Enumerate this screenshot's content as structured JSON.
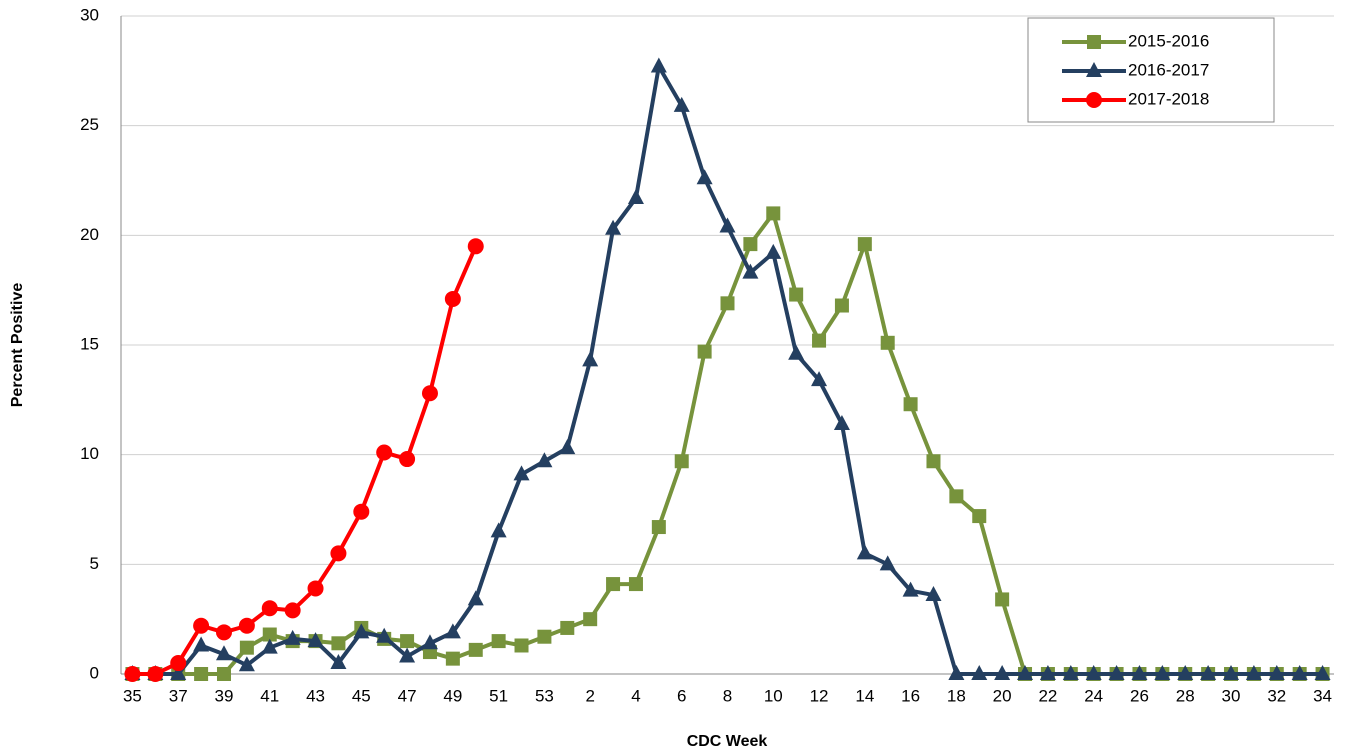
{
  "chart_data": {
    "type": "line",
    "y_label": "Percent Positive",
    "x_label": "CDC Week",
    "categories": [
      "35",
      null,
      "37",
      null,
      "39",
      null,
      "41",
      null,
      "43",
      null,
      "45",
      null,
      "47",
      null,
      "49",
      null,
      "51",
      null,
      "53",
      null,
      "2",
      null,
      "4",
      null,
      "6",
      null,
      "8",
      null,
      "10",
      null,
      "12",
      null,
      "14",
      null,
      "16",
      null,
      "18",
      null,
      "20",
      null,
      "22",
      null,
      "24",
      null,
      "26",
      null,
      "28",
      null,
      "30",
      null,
      "32",
      null,
      "34"
    ],
    "series": [
      {
        "name": "2015-2016",
        "color": "#77933c",
        "marker": "square",
        "values": [
          0,
          0,
          0,
          0,
          0,
          1.2,
          1.8,
          1.5,
          1.5,
          1.4,
          2.1,
          1.6,
          1.5,
          1.0,
          0.7,
          1.1,
          1.5,
          1.3,
          1.7,
          2.1,
          2.5,
          4.1,
          4.1,
          6.7,
          9.7,
          14.7,
          16.9,
          19.6,
          21.0,
          17.3,
          15.2,
          16.8,
          19.6,
          15.1,
          12.3,
          9.7,
          8.1,
          7.2,
          3.4,
          0,
          0,
          0,
          0,
          0,
          0,
          0,
          0,
          0,
          0,
          0,
          0,
          0,
          0
        ]
      },
      {
        "name": "2016-2017",
        "color": "#243f60",
        "marker": "triangle",
        "values": [
          0,
          0,
          0,
          1.3,
          0.9,
          0.4,
          1.2,
          1.6,
          1.5,
          0.5,
          1.9,
          1.7,
          0.8,
          1.4,
          1.9,
          3.4,
          6.5,
          9.1,
          9.7,
          10.3,
          14.3,
          20.3,
          21.7,
          27.7,
          25.9,
          22.6,
          20.4,
          18.3,
          19.2,
          14.6,
          13.4,
          11.4,
          5.5,
          5.0,
          3.8,
          3.6,
          0,
          0,
          0,
          0,
          0,
          0,
          0,
          0,
          0,
          0,
          0,
          0,
          0,
          0,
          0,
          0,
          0
        ]
      },
      {
        "name": "2017-2018",
        "color": "#ff0000",
        "marker": "circle",
        "values": [
          0,
          0,
          0.5,
          2.2,
          1.9,
          2.2,
          3.0,
          2.9,
          3.9,
          5.5,
          7.4,
          10.1,
          9.8,
          12.8,
          17.1,
          19.5,
          null,
          null,
          null,
          null,
          null,
          null,
          null,
          null,
          null,
          null,
          null,
          null,
          null,
          null,
          null,
          null,
          null,
          null,
          null,
          null,
          null,
          null,
          null,
          null,
          null,
          null,
          null,
          null,
          null,
          null,
          null,
          null,
          null,
          null,
          null,
          null,
          null
        ]
      }
    ],
    "ylim": [
      0,
      30
    ],
    "yticks": [
      0,
      5,
      10,
      15,
      20,
      25,
      30
    ],
    "grid": true,
    "legend": "upper right"
  }
}
